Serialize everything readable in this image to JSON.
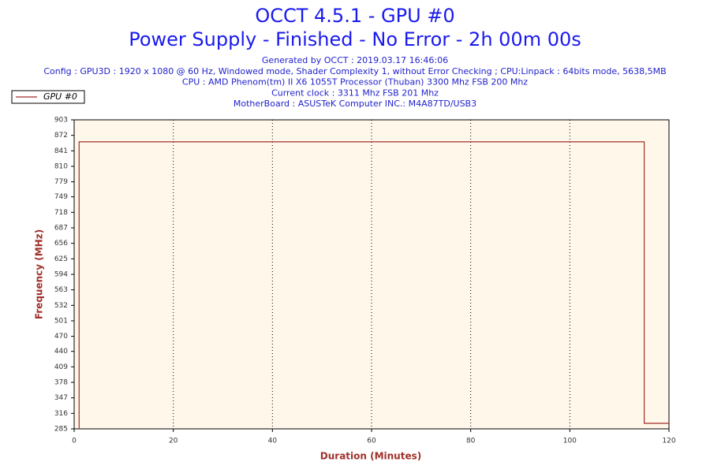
{
  "chart_data": {
    "type": "line",
    "title": "OCCT 4.5.1 - GPU #0",
    "subtitle": "Power Supply - Finished - No Error - 2h 00m 00s",
    "info": [
      "Generated by OCCT : 2019.03.17 16:46:06",
      "Config : GPU3D : 1920 x 1080 @ 60 Hz, Windowed mode, Shader Complexity 1, without Error Checking ; CPU:Linpack : 64bits mode, 5638,5MB",
      "CPU : AMD Phenom(tm) II X6 1055T Processor (Thuban) 3300 Mhz FSB 200 Mhz",
      "Current clock : 3311 Mhz FSB 201 Mhz",
      "MotherBoard : ASUSTeK Computer INC.: M4A87TD/USB3"
    ],
    "xlabel": "Duration (Minutes)",
    "ylabel": "Frequency (MHz)",
    "x": [
      1,
      1,
      115,
      115,
      120
    ],
    "series": [
      {
        "name": "GPU #0",
        "color": "#a52a2a",
        "values": [
          285,
          859,
          859,
          296,
          296
        ]
      }
    ],
    "xlim": [
      0,
      120
    ],
    "xticks": [
      0,
      20,
      40,
      60,
      80,
      100,
      120
    ],
    "ylim": [
      285,
      903
    ],
    "yticks": [
      285,
      316,
      347,
      378,
      409,
      440,
      470,
      501,
      532,
      563,
      594,
      625,
      656,
      687,
      718,
      749,
      779,
      810,
      841,
      872,
      903
    ],
    "grid": true,
    "legend": "top-left"
  }
}
